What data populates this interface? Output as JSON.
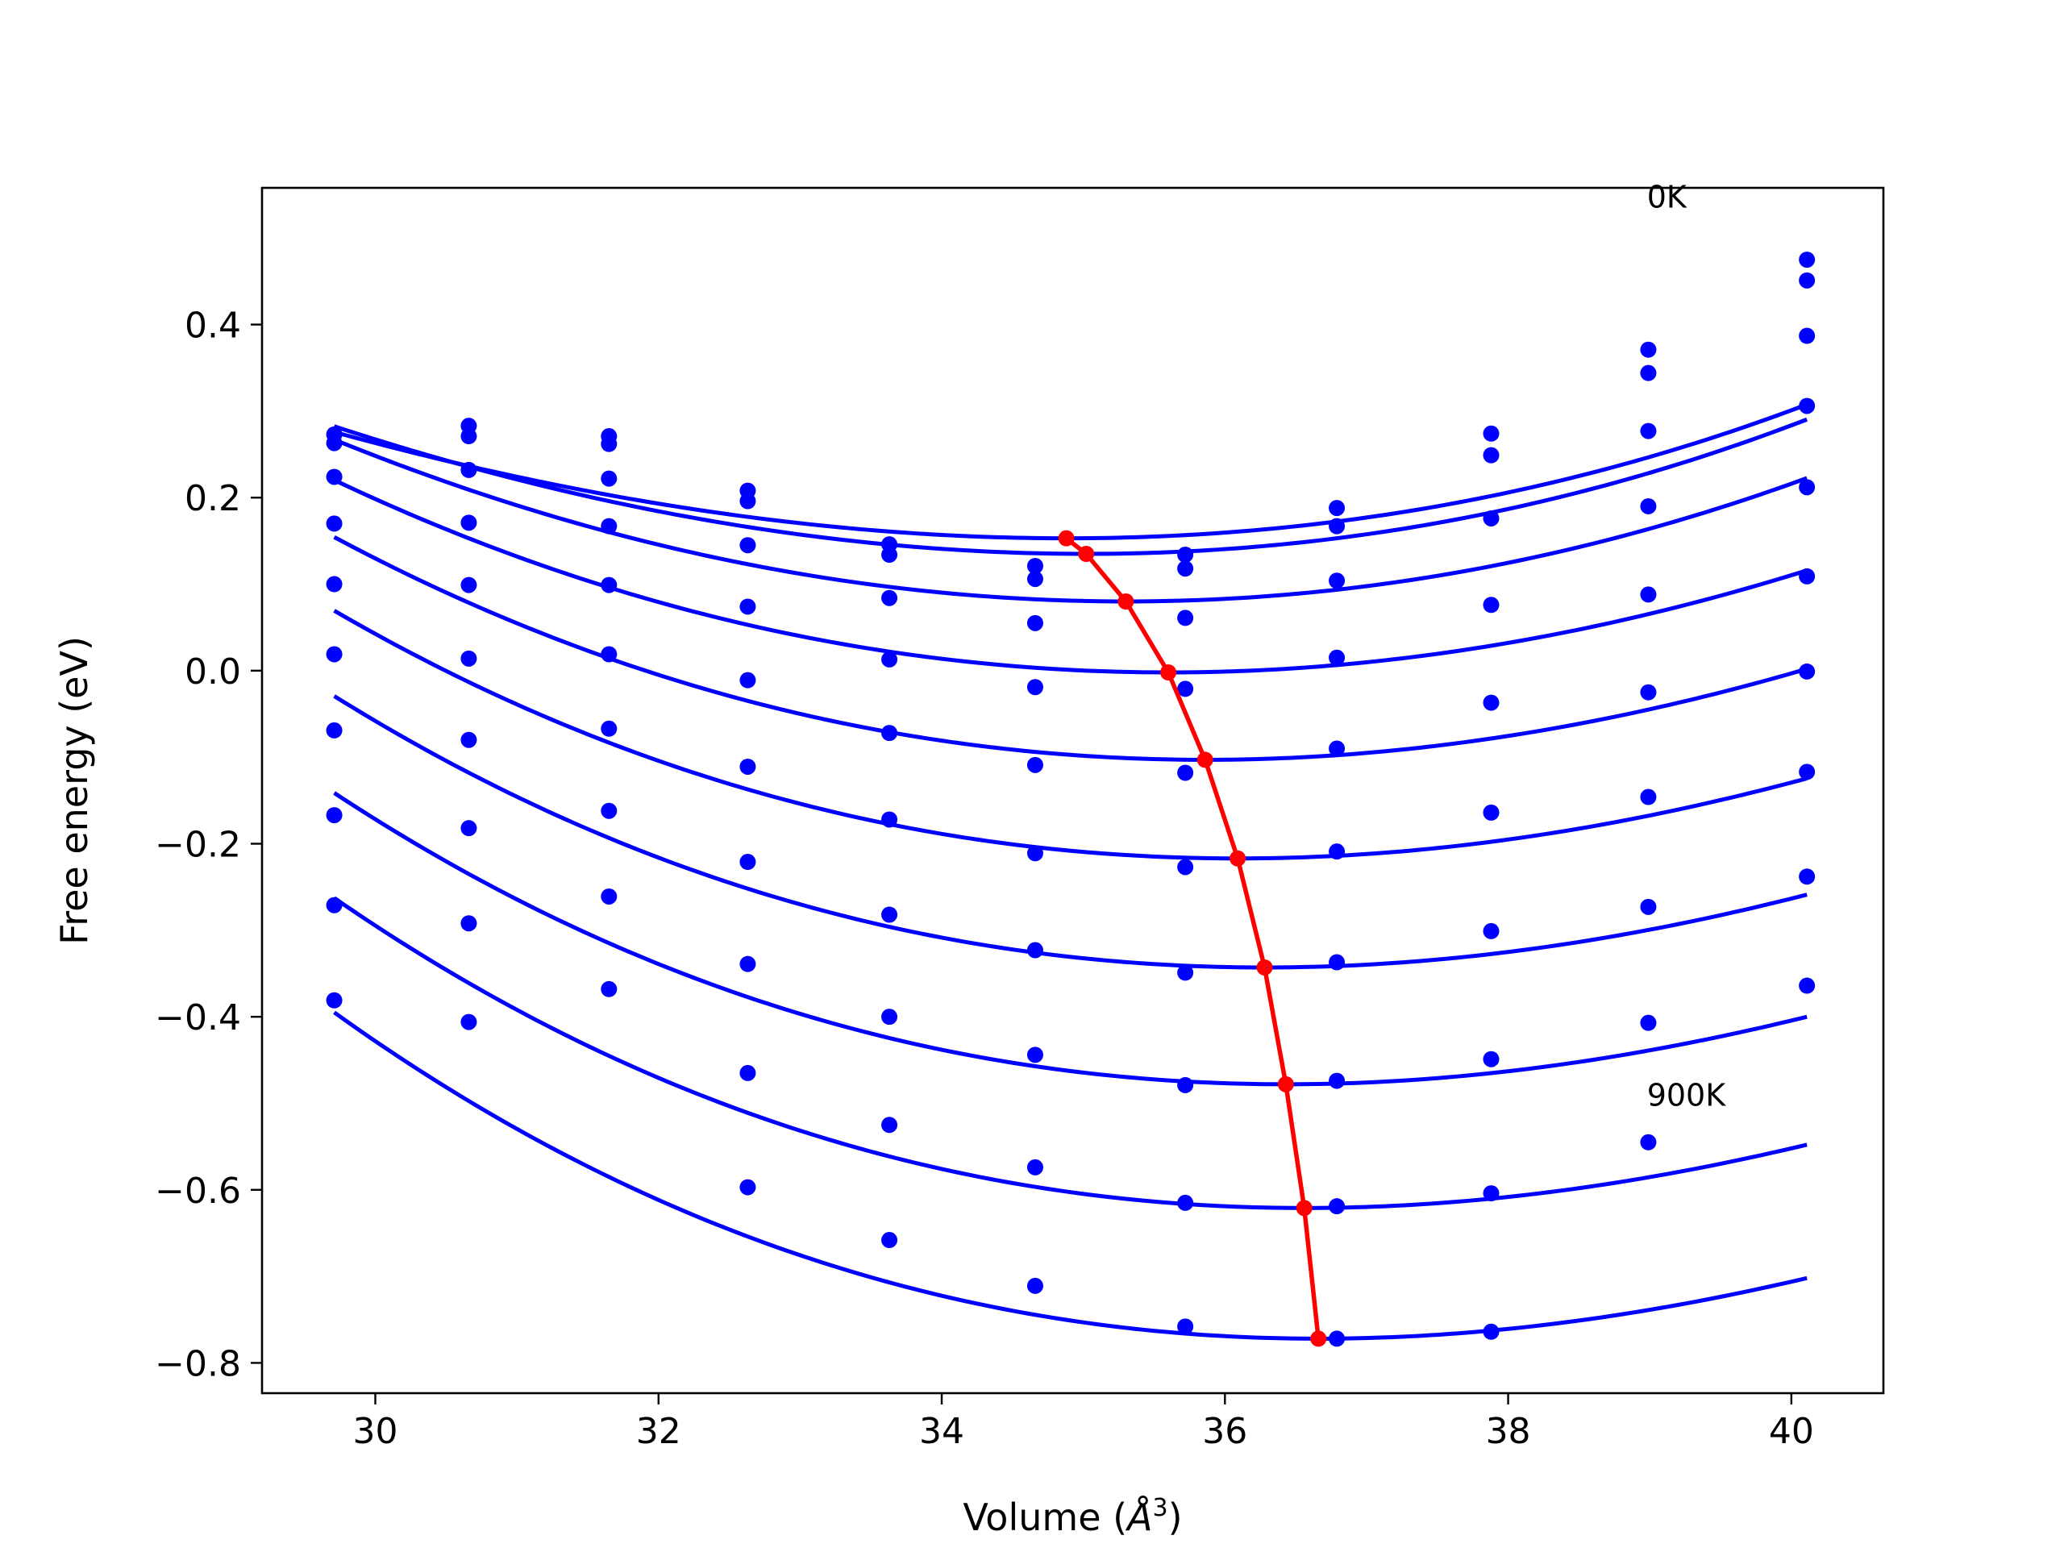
{
  "chart_data": {
    "type": "line",
    "title": "",
    "xlabel": "Volume (Å³)",
    "xlabel_parts": {
      "text": "Volume (",
      "symbol": "Å",
      "sup": "3",
      "close": ")"
    },
    "ylabel": "Free energy (eV)",
    "xlim": [
      29.2,
      40.65
    ],
    "ylim": [
      -0.835,
      0.558
    ],
    "xticks": [
      30,
      32,
      34,
      36,
      38,
      40
    ],
    "xtick_labels": [
      "30",
      "32",
      "34",
      "36",
      "38",
      "40"
    ],
    "yticks": [
      0.4,
      0.2,
      0.0,
      -0.2,
      -0.4,
      -0.6,
      -0.8
    ],
    "ytick_labels": [
      "0.4",
      "0.2",
      "0.0",
      "−0.2",
      "−0.4",
      "−0.6",
      "−0.8"
    ],
    "grid": false,
    "legend": "none",
    "colors": {
      "curves": "#0000ff",
      "points": "#0000ff",
      "minimum_path": "#ff0000"
    },
    "x": [
      29.71,
      30.66,
      31.65,
      32.63,
      33.63,
      34.66,
      35.72,
      36.79,
      37.88,
      38.99,
      40.11
    ],
    "curve_x_range": [
      29.71,
      40.11
    ],
    "series": [
      {
        "values": [
          0.273,
          0.283,
          0.271,
          0.208,
          0.146,
          0.121,
          0.134,
          0.188,
          0.274,
          0.371,
          0.475
        ],
        "fit": {
          "v0": 34.88,
          "e0": 0.153,
          "a": 0.00512,
          "b": 0.000102
        }
      },
      {
        "values": [
          0.263,
          0.271,
          0.262,
          0.196,
          0.134,
          0.106,
          0.118,
          0.167,
          0.249,
          0.344,
          0.451
        ],
        "fit": {
          "v0": 35.02,
          "e0": 0.135,
          "a": 0.00562,
          "b": 7.4e-05
        }
      },
      {
        "values": [
          0.224,
          0.232,
          0.222,
          0.145,
          0.084,
          0.055,
          0.061,
          0.104,
          0.176,
          0.277,
          0.387
        ],
        "fit": {
          "v0": 35.3,
          "e0": 0.08,
          "a": 0.00608,
          "b": 1.7e-05
        }
      },
      {
        "values": [
          0.17,
          0.171,
          0.167,
          0.074,
          0.013,
          -0.019,
          -0.021,
          0.015,
          0.076,
          0.19,
          0.306
        ],
        "fit": {
          "v0": 35.6,
          "e0": -0.002,
          "a": 0.00606,
          "b": -5.9e-05
        }
      },
      {
        "values": [
          0.1,
          0.099,
          0.099,
          -0.011,
          -0.072,
          -0.109,
          -0.118,
          -0.09,
          -0.037,
          0.088,
          0.212
        ],
        "fit": {
          "v0": 35.86,
          "e0": -0.103,
          "a": 0.00622,
          "b": -9.5e-05
        }
      },
      {
        "values": [
          0.019,
          0.014,
          0.019,
          -0.111,
          -0.172,
          -0.211,
          -0.227,
          -0.209,
          -0.164,
          -0.025,
          0.109
        ],
        "fit": {
          "v0": 36.09,
          "e0": -0.217,
          "a": 0.00623,
          "b": -0.000126
        }
      },
      {
        "values": [
          -0.069,
          -0.08,
          -0.067,
          -0.221,
          -0.282,
          -0.323,
          -0.349,
          -0.337,
          -0.301,
          -0.146,
          -0.001
        ],
        "fit": {
          "v0": 36.28,
          "e0": -0.343,
          "a": 0.0063,
          "b": -0.000147
        }
      },
      {
        "values": [
          -0.167,
          -0.182,
          -0.162,
          -0.339,
          -0.4,
          -0.444,
          -0.479,
          -0.474,
          -0.449,
          -0.273,
          -0.117
        ],
        "fit": {
          "v0": 36.43,
          "e0": -0.478,
          "a": 0.00636,
          "b": -0.000163
        }
      },
      {
        "values": [
          -0.271,
          -0.292,
          -0.261,
          -0.465,
          -0.525,
          -0.574,
          -0.615,
          -0.619,
          -0.604,
          -0.407,
          -0.238
        ],
        "fit": {
          "v0": 36.56,
          "e0": -0.621,
          "a": 0.00643,
          "b": -0.000176
        }
      },
      {
        "values": [
          -0.381,
          -0.406,
          -0.368,
          -0.597,
          -0.658,
          -0.711,
          -0.758,
          -0.772,
          -0.764,
          -0.545,
          -0.364
        ],
        "fit": {
          "v0": 36.66,
          "e0": -0.772,
          "a": 0.00652,
          "b": -0.000185
        }
      }
    ],
    "minimum_path": {
      "x": [
        34.88,
        35.02,
        35.3,
        35.6,
        35.86,
        36.09,
        36.28,
        36.43,
        36.56,
        36.66
      ],
      "y": [
        0.153,
        0.135,
        0.08,
        -0.002,
        -0.103,
        -0.217,
        -0.343,
        -0.478,
        -0.621,
        -0.772
      ]
    },
    "annotations": [
      {
        "text": "0K",
        "x": 38.98,
        "y": 0.535
      },
      {
        "text": "900K",
        "x": 38.98,
        "y": -0.503
      }
    ]
  }
}
